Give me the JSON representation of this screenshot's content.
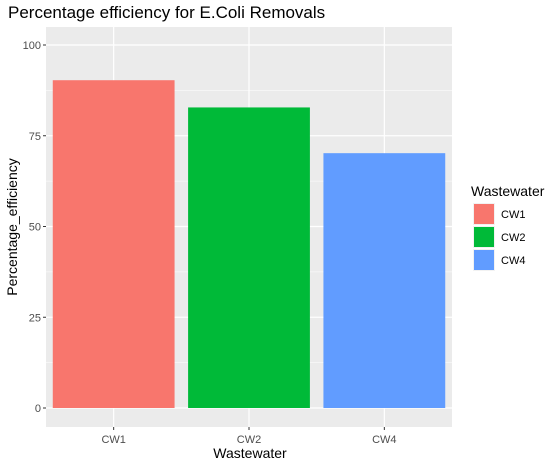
{
  "chart_data": {
    "type": "bar",
    "title": "Percentage efficiency for E.Coli Removals",
    "xlabel": "Wastewater",
    "ylabel": "Percentage_efficiency",
    "categories": [
      "CW1",
      "CW2",
      "CW4"
    ],
    "values": [
      90.3,
      82.8,
      70.2
    ],
    "colors": [
      "#F8766D",
      "#00BA38",
      "#619CFF"
    ],
    "ylim": [
      0,
      100
    ],
    "yticks": [
      0,
      25,
      50,
      75,
      100
    ],
    "grid": true,
    "panel_background": "#EBEBEB",
    "legend": {
      "title": "Wastewater",
      "position": "right",
      "entries": [
        "CW1",
        "CW2",
        "CW4"
      ]
    }
  }
}
